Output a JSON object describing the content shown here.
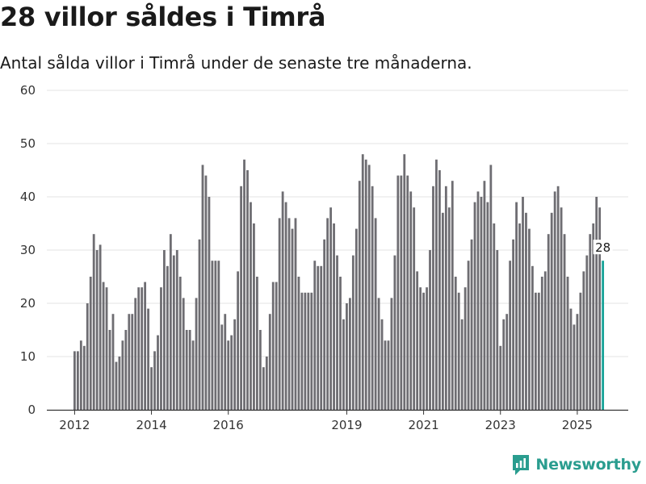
{
  "header": {
    "title": "28 villor såldes i Timrå",
    "subtitle": "Antal sålda villor i Timrå under de senaste tre månaderna."
  },
  "brand": {
    "name": "Newsworthy"
  },
  "colors": {
    "bar": "#6e6d72",
    "highlight": "#17a398",
    "grid": "#e3e3e3",
    "axis": "#333333"
  },
  "chart_data": {
    "type": "bar",
    "title": "28 villor såldes i Timrå",
    "subtitle": "Antal sålda villor i Timrå under de senaste tre månaderna.",
    "xlabel": "",
    "ylabel": "",
    "ylim": [
      0,
      60
    ],
    "yticks": [
      0,
      10,
      20,
      30,
      40,
      50,
      60
    ],
    "x_start": "2012-01",
    "x_ticks": [
      {
        "label": "2012",
        "index": 0
      },
      {
        "label": "2014",
        "index": 24
      },
      {
        "label": "2016",
        "index": 48
      },
      {
        "label": "2019",
        "index": 85
      },
      {
        "label": "2021",
        "index": 109
      },
      {
        "label": "2023",
        "index": 133
      },
      {
        "label": "2025",
        "index": 157
      }
    ],
    "values": [
      11,
      11,
      13,
      12,
      20,
      25,
      33,
      30,
      31,
      24,
      23,
      15,
      18,
      9,
      10,
      13,
      15,
      18,
      18,
      21,
      23,
      23,
      24,
      19,
      8,
      11,
      14,
      23,
      30,
      27,
      33,
      29,
      30,
      25,
      21,
      15,
      15,
      13,
      21,
      32,
      46,
      44,
      40,
      28,
      28,
      28,
      16,
      18,
      13,
      14,
      17,
      26,
      42,
      47,
      45,
      39,
      35,
      25,
      15,
      8,
      10,
      18,
      24,
      24,
      36,
      41,
      39,
      36,
      34,
      36,
      25,
      22,
      22,
      22,
      22,
      28,
      27,
      27,
      32,
      36,
      38,
      35,
      29,
      25,
      17,
      20,
      21,
      29,
      34,
      43,
      48,
      47,
      46,
      42,
      36,
      21,
      17,
      13,
      13,
      21,
      29,
      44,
      44,
      48,
      44,
      41,
      38,
      26,
      23,
      22,
      23,
      30,
      42,
      47,
      45,
      37,
      42,
      38,
      43,
      25,
      22,
      17,
      23,
      28,
      32,
      39,
      41,
      40,
      43,
      39,
      46,
      35,
      30,
      12,
      17,
      18,
      28,
      32,
      39,
      35,
      40,
      37,
      34,
      27,
      22,
      22,
      25,
      26,
      33,
      37,
      41,
      42,
      38,
      33,
      25,
      19,
      16,
      18,
      22,
      26,
      29,
      33,
      35,
      40,
      38,
      28
    ],
    "highlight_index": 165,
    "annotation": {
      "text": "28",
      "index": 165
    }
  }
}
